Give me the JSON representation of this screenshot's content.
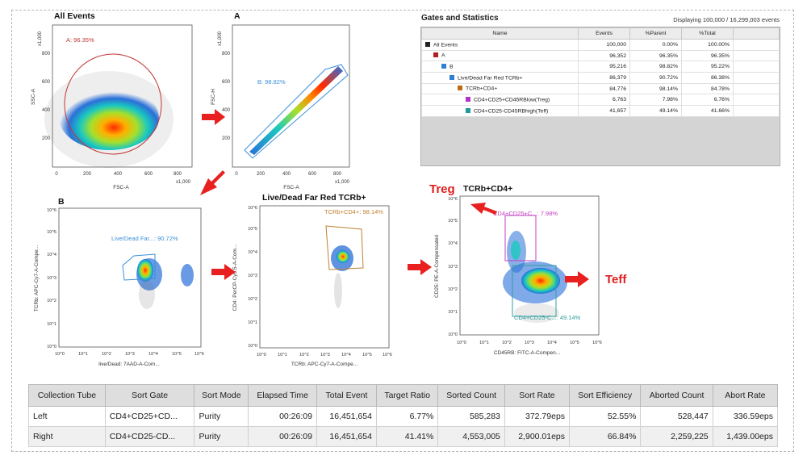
{
  "colors": {
    "red_arrow": "#e82020",
    "gate_a": "#b83030",
    "gate_b": "#3a8fd8",
    "gate_live": "#3a8fd8",
    "gate_tcrb": "#c08030",
    "gate_treg": "#c040c0",
    "gate_teff": "#30a0a0"
  },
  "plots": {
    "all_events": {
      "title": "All Events",
      "gate_label": "A: 96.35%",
      "x_label": "FSC-A",
      "y_label": "SSC-A",
      "x_ticks": [
        "0",
        "200",
        "400",
        "600",
        "800"
      ],
      "y_ticks": [
        "200",
        "400",
        "600",
        "800"
      ],
      "x_mult": "x1,000",
      "y_mult": "x1,000"
    },
    "a": {
      "title": "A",
      "gate_label": "B: 98.82%",
      "x_label": "FSC-A",
      "y_label": "FSC-H",
      "x_ticks": [
        "0",
        "200",
        "400",
        "600",
        "800"
      ],
      "y_ticks": [
        "200",
        "400",
        "600",
        "800"
      ],
      "x_mult": "x1,000",
      "y_mult": "x1,000"
    },
    "b": {
      "title": "B",
      "gate_label": "Live/Dead Far...: 90.72%",
      "x_label": "live/Dead: 7AAD-A-Com...",
      "y_label": "TCRb: APC-Cy7-A-Compe...",
      "x_ticks": [
        "10^0",
        "10^1",
        "10^2",
        "10^3",
        "10^4",
        "10^5",
        "10^6"
      ],
      "y_ticks": [
        "10^0",
        "10^1",
        "10^2",
        "10^3",
        "10^4",
        "10^5",
        "10^6"
      ]
    },
    "live_dead": {
      "title": "Live/Dead Far Red TCRb+",
      "gate_label": "TCRb+CD4+: 98.14%",
      "x_label": "TCRb: APC-Cy7-A-Compe...",
      "y_label": "CD4: PerCP-Cy5.5-A-Com...",
      "x_ticks": [
        "10^0",
        "10^1",
        "10^2",
        "10^3",
        "10^4",
        "10^5",
        "10^6"
      ],
      "y_ticks": [
        "10^0",
        "10^1",
        "10^2",
        "10^3",
        "10^4",
        "10^5",
        "10^6"
      ]
    },
    "tcrb_cd4": {
      "title": "TCRb+CD4+",
      "gate_label_treg": "CD4+CD25+C...: 7.98%",
      "gate_label_teff": "CD4+CD25-C...: 49.14%",
      "x_label": "CD45RB: FITC-A-Compen...",
      "y_label": "CD25: PE-A-Compensated",
      "x_ticks": [
        "10^0",
        "10^1",
        "10^2",
        "10^3",
        "10^4",
        "10^5",
        "10^6"
      ],
      "y_ticks": [
        "10^0",
        "10^1",
        "10^2",
        "10^3",
        "10^4",
        "10^5",
        "10^6"
      ]
    }
  },
  "labels": {
    "treg": "Treg",
    "teff": "Teff"
  },
  "gates_panel": {
    "title": "Gates and Statistics",
    "displaying": "Displaying 100,000 / 16,299,003 events",
    "columns": [
      "Name",
      "Events",
      "%Parent",
      "%Total"
    ],
    "rows": [
      {
        "name": "All Events",
        "events": "100,000",
        "parent": "0.00%",
        "total": "100.00%",
        "color": "#222222"
      },
      {
        "name": "A",
        "events": "96,352",
        "parent": "96.35%",
        "total": "96.35%",
        "color": "#b02020"
      },
      {
        "name": "B",
        "events": "95,216",
        "parent": "98.82%",
        "total": "95.22%",
        "color": "#2b7fd4"
      },
      {
        "name": "Live/Dead Far Red TCRb+",
        "events": "86,379",
        "parent": "90.72%",
        "total": "86.38%",
        "color": "#2b7fd4"
      },
      {
        "name": "TCRb+CD4+",
        "events": "84,776",
        "parent": "98.14%",
        "total": "84.78%",
        "color": "#c06a10"
      },
      {
        "name": "CD4+CD25+CD45RBlow(Treg)",
        "events": "6,763",
        "parent": "7.98%",
        "total": "6.76%",
        "color": "#b030c8"
      },
      {
        "name": "CD4+CD25-CD45RBhigh(Teff)",
        "events": "41,657",
        "parent": "49.14%",
        "total": "41.66%",
        "color": "#209a9a"
      }
    ]
  },
  "sort_table": {
    "columns": [
      "Collection Tube",
      "Sort Gate",
      "Sort Mode",
      "Elapsed Time",
      "Total Event",
      "Target Ratio",
      "Sorted Count",
      "Sort Rate",
      "Sort Efficiency",
      "Aborted Count",
      "Abort Rate"
    ],
    "rows": [
      [
        "Left",
        "CD4+CD25+CD...",
        "Purity",
        "00:26:09",
        "16,451,654",
        "6.77%",
        "585,283",
        "372.79eps",
        "52.55%",
        "528,447",
        "336.59eps"
      ],
      [
        "Right",
        "CD4+CD25-CD...",
        "Purity",
        "00:26:09",
        "16,451,654",
        "41.41%",
        "4,553,005",
        "2,900.01eps",
        "66.84%",
        "2,259,225",
        "1,439.00eps"
      ]
    ]
  }
}
